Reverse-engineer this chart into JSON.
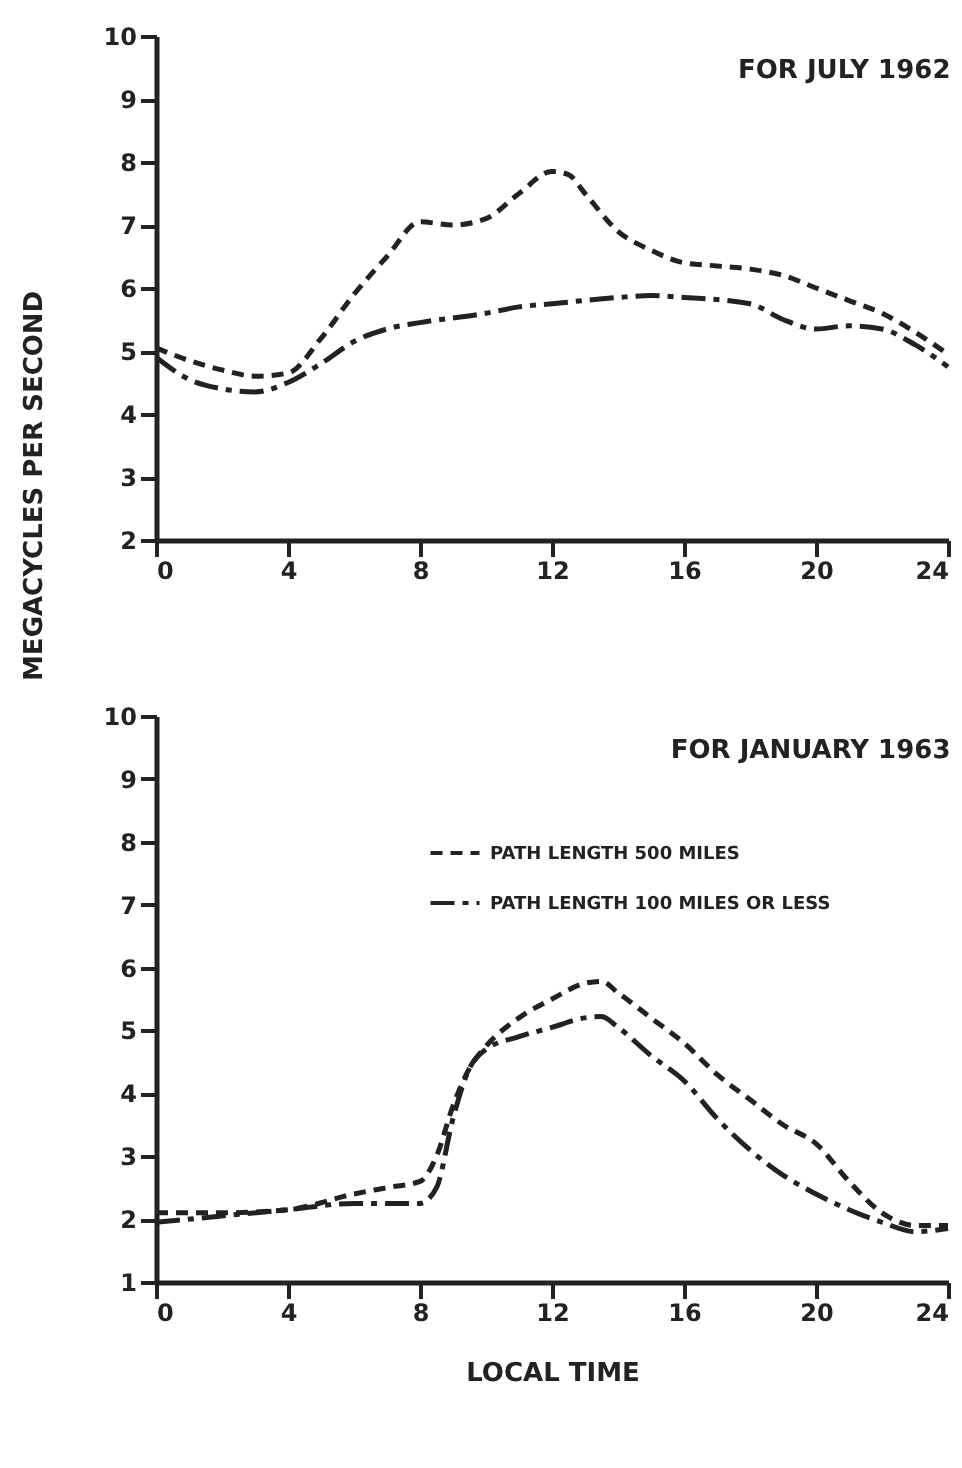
{
  "chart_data": [
    {
      "type": "line",
      "title": "FOR JULY 1962",
      "ylabel": "MEGACYCLES PER SECOND",
      "xlim": [
        0,
        24
      ],
      "xticks": [
        0,
        4,
        8,
        12,
        16,
        20,
        24
      ],
      "ylim": [
        2,
        10
      ],
      "yticks": [
        2,
        3,
        4,
        5,
        6,
        7,
        8,
        9,
        10
      ],
      "grid": false,
      "marker": "none",
      "series": [
        {
          "color": "#222222",
          "line_style": "dashed",
          "x": [
            0,
            1,
            2,
            3,
            4,
            5,
            6,
            7,
            8,
            9,
            10,
            11,
            12,
            12.5,
            13,
            14,
            15,
            16,
            17,
            18,
            19,
            20,
            21,
            22,
            23,
            24
          ],
          "values": [
            5.05,
            4.85,
            4.7,
            4.6,
            4.65,
            5.2,
            5.9,
            6.5,
            7.05,
            7.0,
            7.1,
            7.5,
            7.85,
            7.8,
            7.5,
            6.9,
            6.6,
            6.4,
            6.35,
            6.3,
            6.2,
            6.0,
            5.8,
            5.6,
            5.3,
            4.95
          ]
        },
        {
          "color": "#222222",
          "line_style": "dashdot",
          "x": [
            0,
            1,
            2,
            3,
            4,
            5,
            6,
            7,
            8,
            10,
            11,
            12,
            14,
            15,
            16,
            18,
            19,
            20,
            21,
            22,
            23,
            24
          ],
          "values": [
            4.9,
            4.55,
            4.4,
            4.35,
            4.5,
            4.8,
            5.15,
            5.35,
            5.45,
            5.6,
            5.7,
            5.75,
            5.85,
            5.88,
            5.85,
            5.75,
            5.5,
            5.35,
            5.4,
            5.35,
            5.1,
            4.75
          ]
        }
      ]
    },
    {
      "type": "line",
      "title": "FOR JANUARY 1963",
      "xlabel": "LOCAL TIME",
      "xlim": [
        0,
        24
      ],
      "xticks": [
        0,
        4,
        8,
        12,
        16,
        20,
        24
      ],
      "ylim": [
        1,
        10
      ],
      "yticks": [
        1,
        2,
        3,
        4,
        5,
        6,
        7,
        8,
        9,
        10
      ],
      "grid": false,
      "legend": "top right",
      "marker": "none",
      "series": [
        {
          "name": "PATH LENGTH  500 MILES",
          "color": "#222222",
          "line_style": "dashed",
          "x": [
            0,
            2,
            4,
            6,
            7,
            8,
            8.5,
            9,
            9.5,
            10,
            11,
            12,
            13,
            13.5,
            14,
            15,
            16,
            17,
            18,
            19,
            20,
            21,
            22,
            23,
            24
          ],
          "values": [
            2.1,
            2.1,
            2.15,
            2.4,
            2.5,
            2.6,
            3.0,
            3.8,
            4.4,
            4.75,
            5.2,
            5.5,
            5.75,
            5.78,
            5.6,
            5.2,
            4.8,
            4.3,
            3.9,
            3.5,
            3.2,
            2.6,
            2.1,
            1.9,
            1.9
          ]
        },
        {
          "name": "PATH LENGTH  100 MILES OR LESS",
          "color": "#222222",
          "line_style": "dashdot",
          "x": [
            0,
            2,
            4,
            6,
            7,
            8,
            8.5,
            9,
            9.5,
            10,
            11,
            12,
            13,
            13.5,
            14,
            15,
            16,
            17,
            18,
            19,
            20,
            21,
            22,
            23,
            24
          ],
          "values": [
            1.95,
            2.05,
            2.15,
            2.25,
            2.25,
            2.25,
            2.5,
            3.6,
            4.4,
            4.7,
            4.9,
            5.05,
            5.2,
            5.22,
            5.05,
            4.6,
            4.2,
            3.6,
            3.1,
            2.7,
            2.4,
            2.15,
            1.95,
            1.8,
            1.85
          ]
        }
      ]
    }
  ]
}
